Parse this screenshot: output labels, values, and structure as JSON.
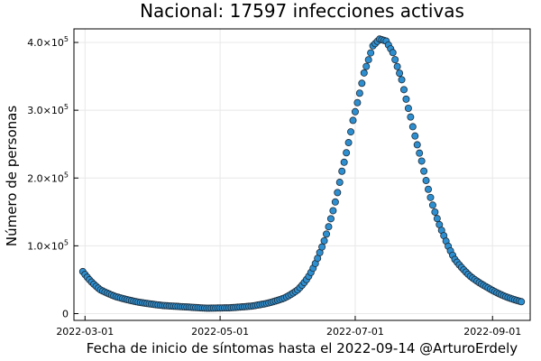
{
  "chart_data": {
    "type": "scatter",
    "title": "Nacional:  17597 infecciones activas",
    "xlabel": "Fecha de inicio de síntomas hasta el 2022-09-14 @ArturoErdely",
    "ylabel": "Número de personas",
    "x_start": "2022-02-28",
    "x_end": "2022-09-14",
    "xlim": [
      "2022-02-24",
      "2022-09-18"
    ],
    "ylim": [
      -10000,
      420000
    ],
    "grid": true,
    "legend": "none",
    "marker_color": "#2e8fd0",
    "x_ticks": [
      {
        "date": "2022-03-01",
        "label": "2022-03-01"
      },
      {
        "date": "2022-05-01",
        "label": "2022-05-01"
      },
      {
        "date": "2022-07-01",
        "label": "2022-07-01"
      },
      {
        "date": "2022-09-01",
        "label": "2022-09-01"
      }
    ],
    "y_ticks": [
      {
        "value": 0,
        "mantissa": "0",
        "exp": ""
      },
      {
        "value": 100000,
        "mantissa": "1.0×10",
        "exp": "5"
      },
      {
        "value": 200000,
        "mantissa": "2.0×10",
        "exp": "5"
      },
      {
        "value": 300000,
        "mantissa": "3.0×10",
        "exp": "5"
      },
      {
        "value": 400000,
        "mantissa": "4.0×10",
        "exp": "5"
      }
    ],
    "keypoints": [
      {
        "date": "2022-02-28",
        "value": 62000
      },
      {
        "date": "2022-03-03",
        "value": 50000
      },
      {
        "date": "2022-03-08",
        "value": 35000
      },
      {
        "date": "2022-03-15",
        "value": 25000
      },
      {
        "date": "2022-03-25",
        "value": 17000
      },
      {
        "date": "2022-04-05",
        "value": 12000
      },
      {
        "date": "2022-04-15",
        "value": 10000
      },
      {
        "date": "2022-04-25",
        "value": 8000
      },
      {
        "date": "2022-05-05",
        "value": 8500
      },
      {
        "date": "2022-05-15",
        "value": 11000
      },
      {
        "date": "2022-05-22",
        "value": 15000
      },
      {
        "date": "2022-05-30",
        "value": 23000
      },
      {
        "date": "2022-06-05",
        "value": 35000
      },
      {
        "date": "2022-06-10",
        "value": 55000
      },
      {
        "date": "2022-06-15",
        "value": 90000
      },
      {
        "date": "2022-06-20",
        "value": 140000
      },
      {
        "date": "2022-06-25",
        "value": 210000
      },
      {
        "date": "2022-06-30",
        "value": 285000
      },
      {
        "date": "2022-07-05",
        "value": 355000
      },
      {
        "date": "2022-07-09",
        "value": 395000
      },
      {
        "date": "2022-07-12",
        "value": 405000
      },
      {
        "date": "2022-07-15",
        "value": 402000
      },
      {
        "date": "2022-07-18",
        "value": 385000
      },
      {
        "date": "2022-07-22",
        "value": 345000
      },
      {
        "date": "2022-07-26",
        "value": 290000
      },
      {
        "date": "2022-07-31",
        "value": 225000
      },
      {
        "date": "2022-08-05",
        "value": 160000
      },
      {
        "date": "2022-08-10",
        "value": 115000
      },
      {
        "date": "2022-08-15",
        "value": 80000
      },
      {
        "date": "2022-08-22",
        "value": 55000
      },
      {
        "date": "2022-08-30",
        "value": 38000
      },
      {
        "date": "2022-09-07",
        "value": 25000
      },
      {
        "date": "2022-09-14",
        "value": 17597
      }
    ]
  }
}
